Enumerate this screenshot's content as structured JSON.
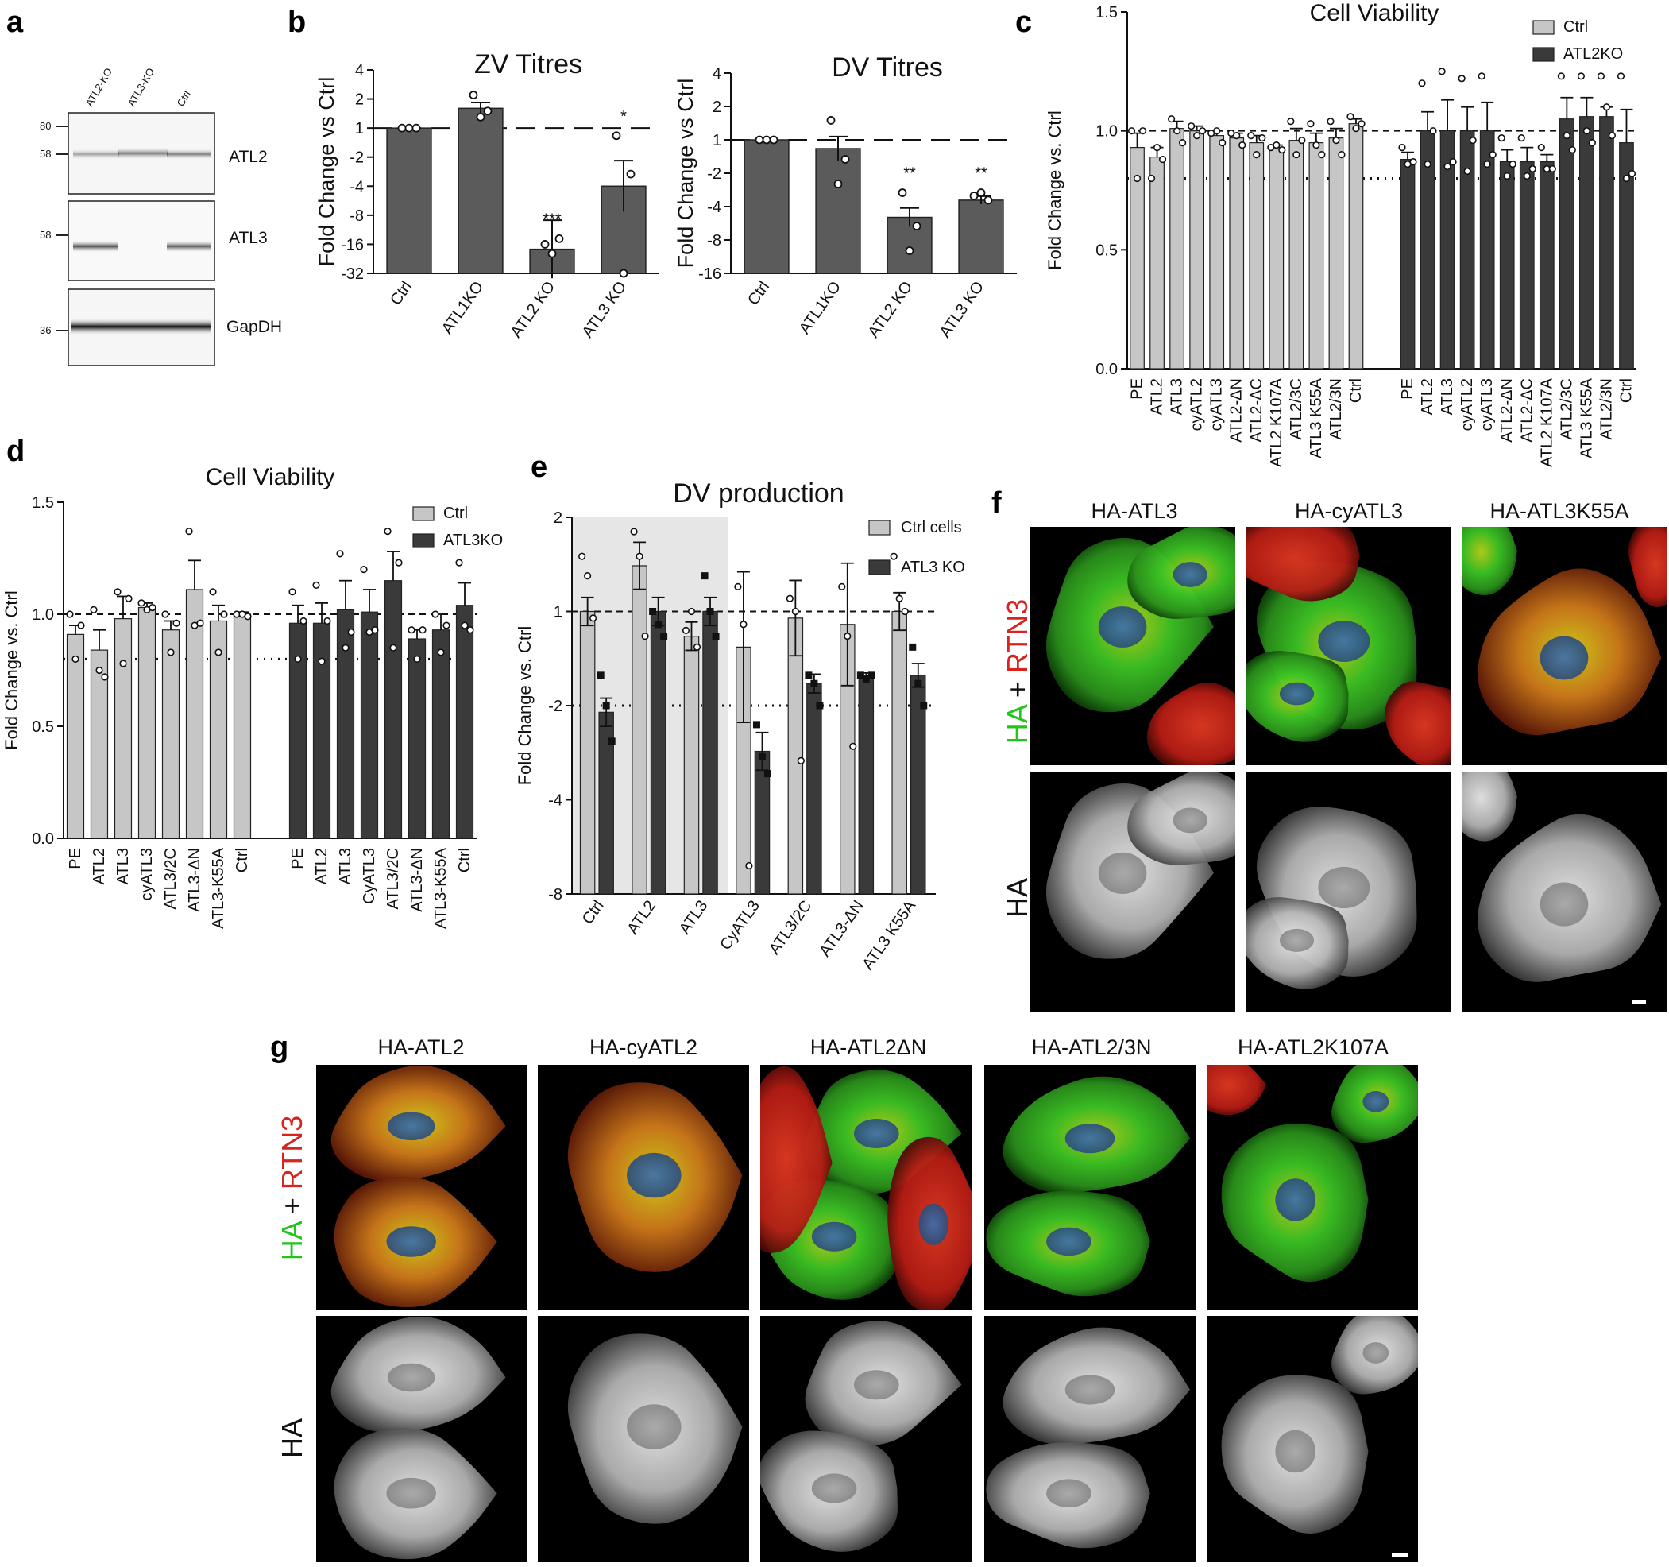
{
  "panel_labels": {
    "a": "a",
    "b": "b",
    "c": "c",
    "d": "d",
    "e": "e",
    "f": "f",
    "g": "g"
  },
  "colors": {
    "dark_bar": "#5b5b5b",
    "light_bar": "#c6c6c6",
    "black_bar": "#3a3a3a",
    "green": "#22c51c",
    "red": "#d8231e",
    "shade": "#e6e6e6"
  },
  "panel_a": {
    "lanes": [
      "ATL2-KO",
      "ATL3-KO",
      "Ctrl"
    ],
    "blots": [
      {
        "label": "ATL2",
        "markers": [
          "80",
          "58"
        ]
      },
      {
        "label": "ATL3",
        "markers": [
          "58"
        ]
      },
      {
        "label": "GapDH",
        "markers": [
          "36"
        ]
      }
    ]
  },
  "chart_data": [
    {
      "id": "b1",
      "type": "bar",
      "title": "ZV Titres",
      "ylabel": "Fold Change vs Ctrl",
      "yticks": [
        "4",
        "2",
        "1",
        "-2",
        "-4",
        "-8",
        "-16",
        "-32"
      ],
      "categories": [
        "Ctrl",
        "ATL1KO",
        "ATL2 KO",
        "ATL3 KO"
      ],
      "values": [
        1,
        1.6,
        -18,
        -4
      ],
      "err": [
        0,
        0.5,
        2.5,
        2.2
      ],
      "points": [
        [
          1,
          1,
          1
        ],
        [
          2.2,
          1.3,
          1.5
        ],
        [
          -16,
          -20,
          -14
        ],
        [
          -1.2,
          -32,
          -3
        ]
      ],
      "sig": [
        "",
        "",
        "***",
        "*"
      ],
      "reference_line": 1
    },
    {
      "id": "b2",
      "type": "bar",
      "title": "DV Titres",
      "ylabel": "Fold Change vs Ctrl",
      "yticks": [
        "4",
        "2",
        "1",
        "-2",
        "-4",
        "-8",
        "-16"
      ],
      "categories": [
        "Ctrl",
        "ATL1KO",
        "ATL2 KO",
        "ATL3 KO"
      ],
      "values": [
        1,
        -1.2,
        -5,
        -3.5
      ],
      "err": [
        0,
        0.9,
        0.7,
        0.3
      ],
      "points": [
        [
          1,
          1,
          1
        ],
        [
          1.5,
          -2.5,
          -1.5
        ],
        [
          -3,
          -10,
          -6
        ],
        [
          -3.2,
          -3,
          -3.5
        ]
      ],
      "sig": [
        "",
        "",
        "**",
        "**"
      ],
      "reference_line": 1
    },
    {
      "id": "c",
      "type": "bar",
      "title": "Cell Viability",
      "ylabel": "Fold Change vs. Ctrl",
      "ylim": [
        0,
        1.5
      ],
      "yticks": [
        "0.0",
        "0.5",
        "1.0",
        "1.5"
      ],
      "legend": [
        "Ctrl",
        "ATL2KO"
      ],
      "categories": [
        "PE",
        "ATL2",
        "ATL3",
        "cyATL2",
        "cyATL3",
        "ATL2-ΔN",
        "ATL2-ΔC",
        "ATL2 K107A",
        "ATL2/3C",
        "ATL3 K55A",
        "ATL2/3N",
        "Ctrl"
      ],
      "series": [
        {
          "name": "Ctrl",
          "values": [
            0.93,
            0.89,
            1.01,
            1.0,
            0.98,
            0.97,
            0.95,
            0.93,
            0.96,
            0.95,
            0.97,
            1.03
          ],
          "err": [
            0.06,
            0.04,
            0.03,
            0.02,
            0.02,
            0.02,
            0.03,
            0.01,
            0.05,
            0.04,
            0.04,
            0.02
          ],
          "points": [
            [
              1.0,
              0.8,
              1.0
            ],
            [
              0.8,
              0.93,
              0.88
            ],
            [
              1.05,
              1.0,
              0.95
            ],
            [
              1.02,
              0.98,
              1.0
            ],
            [
              0.99,
              1.0,
              0.95
            ],
            [
              0.99,
              0.98,
              0.94
            ],
            [
              0.98,
              0.9,
              0.97
            ],
            [
              0.93,
              0.94,
              0.92
            ],
            [
              1.04,
              0.9,
              0.96
            ],
            [
              1.03,
              0.94,
              0.9
            ],
            [
              1.04,
              0.96,
              0.9
            ],
            [
              1.06,
              1.01,
              1.03
            ]
          ]
        },
        {
          "name": "ATL2KO",
          "values": [
            0.88,
            1.0,
            1.0,
            1.0,
            1.0,
            0.87,
            0.87,
            0.87,
            1.05,
            1.06,
            1.06,
            0.95
          ],
          "err": [
            0.03,
            0.08,
            0.13,
            0.1,
            0.12,
            0.05,
            0.06,
            0.03,
            0.09,
            0.08,
            0.04,
            0.14
          ],
          "points": [
            [
              0.93,
              0.86,
              0.87
            ],
            [
              1.2,
              0.86,
              1.0
            ],
            [
              1.25,
              0.85,
              0.87
            ],
            [
              1.22,
              0.83,
              0.96
            ],
            [
              1.23,
              0.86,
              0.9
            ],
            [
              0.97,
              0.81,
              0.86
            ],
            [
              0.97,
              0.81,
              0.84
            ],
            [
              0.93,
              0.84,
              0.84
            ],
            [
              1.23,
              0.98,
              0.92
            ],
            [
              1.23,
              1.0,
              0.95
            ],
            [
              1.23,
              1.1,
              0.98
            ],
            [
              1.23,
              0.8,
              0.82
            ]
          ]
        }
      ],
      "dashed_line": 1.0,
      "dotted_line": 0.8
    },
    {
      "id": "d",
      "type": "bar",
      "title": "Cell Viability",
      "ylabel": "Fold Change vs. Ctrl",
      "ylim": [
        0,
        1.5
      ],
      "yticks": [
        "0.0",
        "0.5",
        "1.0",
        "1.5"
      ],
      "legend": [
        "Ctrl",
        "ATL3KO"
      ],
      "categories_ctrl": [
        "PE",
        "ATL2",
        "ATL3",
        "cyATL3",
        "ATL3/2C",
        "ATL3-ΔN",
        "ATL3-K55A",
        "Ctrl"
      ],
      "categories_ko": [
        "PE",
        "ATL2",
        "ATL3",
        "CyATL3",
        "ATL3/2C",
        "ATL3-ΔN",
        "ATL3-K55A",
        "Ctrl"
      ],
      "series": [
        {
          "name": "Ctrl",
          "values": [
            0.91,
            0.84,
            0.98,
            1.03,
            0.93,
            1.11,
            0.97,
            1.0
          ],
          "err": [
            0.04,
            0.09,
            0.1,
            0.02,
            0.04,
            0.13,
            0.07,
            0.01
          ],
          "points": [
            [
              1.0,
              0.8,
              0.95
            ],
            [
              1.02,
              0.75,
              0.72
            ],
            [
              1.1,
              0.78,
              1.07
            ],
            [
              1.05,
              1.02,
              1.03
            ],
            [
              1.0,
              0.83,
              0.96
            ],
            [
              1.37,
              0.95,
              0.96
            ],
            [
              1.1,
              0.83,
              1.0
            ],
            [
              1.0,
              1.0,
              0.99
            ]
          ]
        },
        {
          "name": "ATL3KO",
          "values": [
            0.96,
            0.96,
            1.02,
            1.01,
            1.15,
            0.89,
            0.93,
            1.04
          ],
          "err": [
            0.08,
            0.09,
            0.13,
            0.1,
            0.13,
            0.04,
            0.07,
            0.1
          ],
          "points": [
            [
              1.1,
              0.8,
              0.97
            ],
            [
              1.13,
              0.79,
              0.97
            ],
            [
              1.27,
              0.85,
              0.92
            ],
            [
              1.2,
              0.92,
              0.93
            ],
            [
              1.37,
              0.85,
              1.23
            ],
            [
              0.93,
              0.8,
              0.93
            ],
            [
              1.0,
              0.83,
              0.95
            ],
            [
              1.23,
              0.95,
              0.93
            ]
          ]
        }
      ],
      "dashed_line": 1.0,
      "dotted_line": 0.8
    },
    {
      "id": "e",
      "type": "bar",
      "title": "DV production",
      "ylabel": "Fold Change vs. Ctrl",
      "yticks": [
        "2",
        "1",
        "-2",
        "-4",
        "-8"
      ],
      "legend": [
        "Ctrl cells",
        "ATL3 KO"
      ],
      "categories": [
        "Ctrl",
        "ATL2",
        "ATL3",
        "CyATL3",
        "ATL3/2C",
        "ATL3-ΔN",
        "ATL3 K55A"
      ],
      "series": [
        {
          "name": "Ctrl cells",
          "values": [
            1,
            1.4,
            -1.2,
            -1.3,
            -1.05,
            -1.1,
            1
          ],
          "err": [
            0.3,
            0.5,
            0.3,
            1.6,
            0.8,
            1.3,
            0.4
          ],
          "points": [
            [
              1.5,
              1.3,
              -1.05
            ],
            [
              1.8,
              1.5,
              -1.2
            ],
            [
              -1.15,
              -1.0,
              -1.3
            ],
            [
              1.2,
              -1.1,
              -6.5
            ],
            [
              1.1,
              -1.0,
              -3
            ],
            [
              1.2,
              -1.2,
              -2.7
            ],
            [
              1.5,
              1.1,
              -1.0
            ]
          ]
        },
        {
          "name": "ATL3 KO",
          "values": [
            -2.1,
            -1.0,
            -0.9,
            -2.8,
            -1.7,
            -1.6,
            -1.6
          ],
          "err": [
            0.3,
            0.3,
            0.3,
            0.4,
            0.2,
            0.05,
            0.25
          ],
          "points": [
            [
              -1.6,
              -2.0,
              -2.6
            ],
            [
              1.0,
              -1.1,
              -1.2
            ],
            [
              1.3,
              -1.0,
              -1.2
            ],
            [
              -2.3,
              -2.9,
              -3.3
            ],
            [
              -1.6,
              -1.7,
              -2.0
            ],
            [
              -1.6,
              -1.65,
              -1.6
            ],
            [
              -1.3,
              -1.7,
              -2.0
            ]
          ]
        }
      ],
      "dashed_line": 1,
      "dotted_line": -2
    }
  ],
  "panel_f": {
    "columns": [
      "HA-ATL3",
      "HA-cyATL3",
      "HA-ATL3K55A"
    ],
    "row_labels": [
      {
        "parts": [
          "HA",
          "+",
          "RTN3"
        ]
      },
      {
        "parts": [
          "HA"
        ]
      }
    ]
  },
  "panel_g": {
    "columns": [
      "HA-ATL2",
      "HA-cyATL2",
      "HA-ATL2ΔN",
      "HA-ATL2/3N",
      "HA-ATL2K107A"
    ],
    "row_labels": [
      {
        "parts": [
          "HA",
          "+",
          "RTN3"
        ]
      },
      {
        "parts": [
          "HA"
        ]
      }
    ]
  }
}
